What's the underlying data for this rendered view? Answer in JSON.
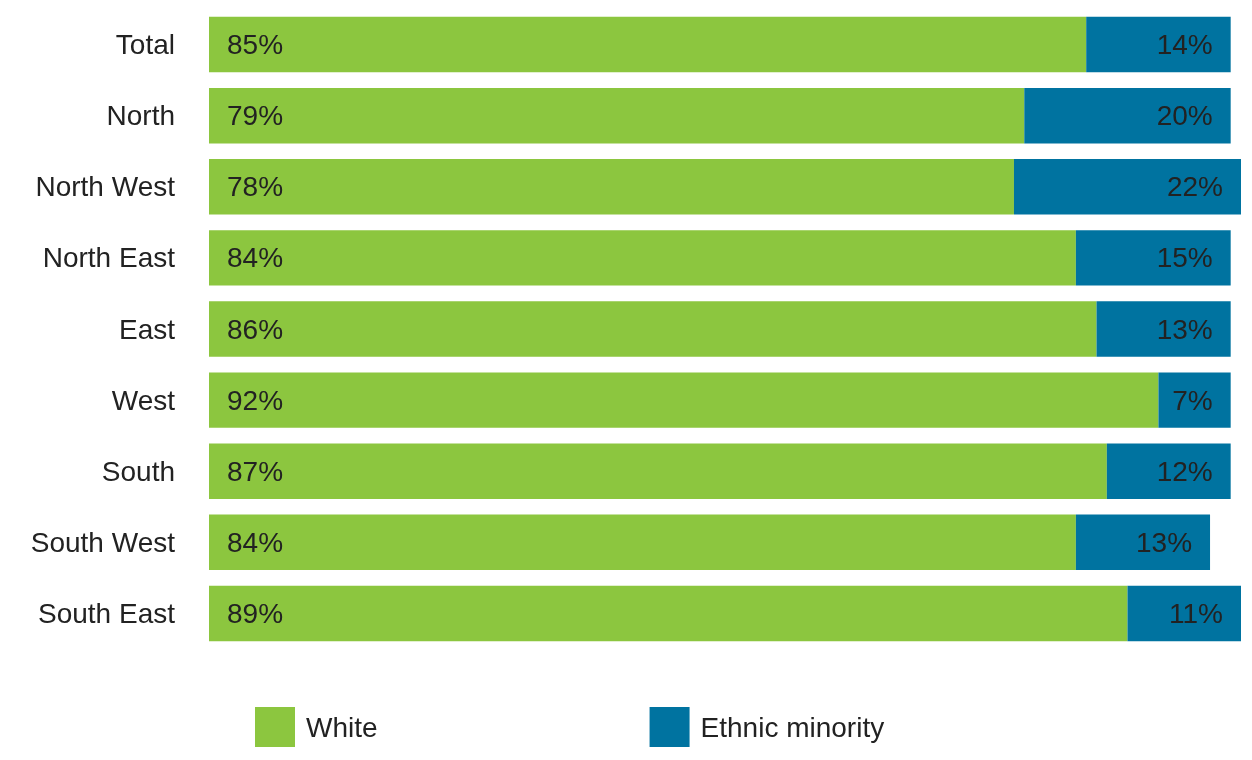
{
  "chart_data": {
    "type": "bar",
    "orientation": "horizontal",
    "stacked": true,
    "legend": "bottom",
    "tick_labels": "y",
    "xlim": [
      0,
      100
    ],
    "categories": [
      "Total",
      "North",
      "North West",
      "North East",
      "East",
      "West",
      "South",
      "South West",
      "South East"
    ],
    "series": [
      {
        "name": "White",
        "color": "#8cc63f",
        "values": [
          85,
          79,
          78,
          84,
          86,
          92,
          87,
          84,
          89
        ],
        "value_labels": [
          "85%",
          "79%",
          "78%",
          "84%",
          "86%",
          "92%",
          "87%",
          "84%",
          "89%"
        ]
      },
      {
        "name": "Ethnic minority",
        "color": "#0073a0",
        "values": [
          14,
          20,
          22,
          15,
          13,
          7,
          12,
          13,
          11
        ],
        "value_labels": [
          "14%",
          "20%",
          "22%",
          "15%",
          "13%",
          "7%",
          "12%",
          "13%",
          "11%"
        ]
      }
    ]
  }
}
